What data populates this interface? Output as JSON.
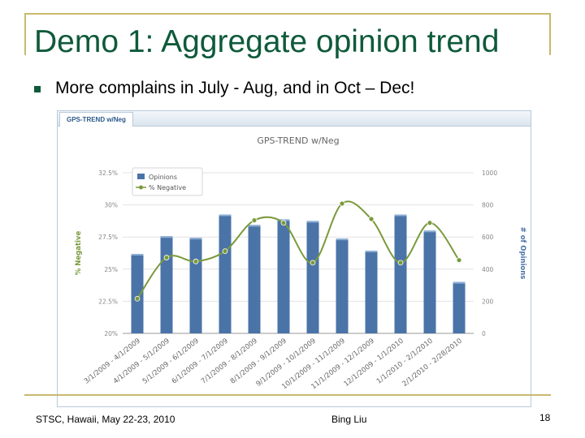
{
  "slide": {
    "title": "Demo 1: Aggregate opinion trend",
    "bullet": "More complains in July - Aug, and in Oct – Dec!",
    "footer_left": "STSC, Hawaii, May 22-23, 2010",
    "footer_center": "Bing Liu",
    "page_number": "18"
  },
  "panel": {
    "tab_label": "GPS-TREND w/Neg"
  },
  "colors": {
    "title": "#0f5a3a",
    "frame": "#c9b96e",
    "bars": "#4a73a8",
    "line": "#7a9a3c"
  },
  "chart_data": {
    "type": "bar",
    "title": "GPS-TREND w/Neg",
    "categories": [
      "3/1/2009 - 4/1/2009",
      "4/1/2009 - 5/1/2009",
      "5/1/2009 - 6/1/2009",
      "6/1/2009 - 7/1/2009",
      "7/1/2009 - 8/1/2009",
      "8/1/2009 - 9/1/2009",
      "9/1/2009 - 10/1/2009",
      "10/1/2009 - 11/1/2009",
      "11/1/2009 - 12/1/2009",
      "12/1/2009 - 1/1/2010",
      "1/1/2010 - 2/1/2010",
      "2/1/2010 - 2/28/2010"
    ],
    "series": [
      {
        "name": "Opinions",
        "kind": "bar",
        "axis": "right",
        "values": [
          495,
          605,
          595,
          740,
          675,
          710,
          700,
          590,
          515,
          740,
          640,
          320
        ]
      },
      {
        "name": "% Negative",
        "kind": "line",
        "axis": "left",
        "values": [
          22.7,
          25.9,
          25.6,
          26.4,
          28.8,
          28.6,
          25.5,
          30.1,
          28.9,
          25.5,
          28.6,
          25.7
        ]
      }
    ],
    "ylabel_left": "% Negative",
    "ylabel_right": "# of Opinions",
    "ylim_left": [
      20,
      32.5
    ],
    "ylim_right": [
      0,
      1000
    ],
    "yticks_left": [
      "20%",
      "22.5%",
      "25%",
      "27.5%",
      "30%",
      "32.5%"
    ],
    "yticks_right": [
      "0",
      "200",
      "400",
      "600",
      "800",
      "1000"
    ],
    "legend_position": "top-left",
    "grid": true
  }
}
